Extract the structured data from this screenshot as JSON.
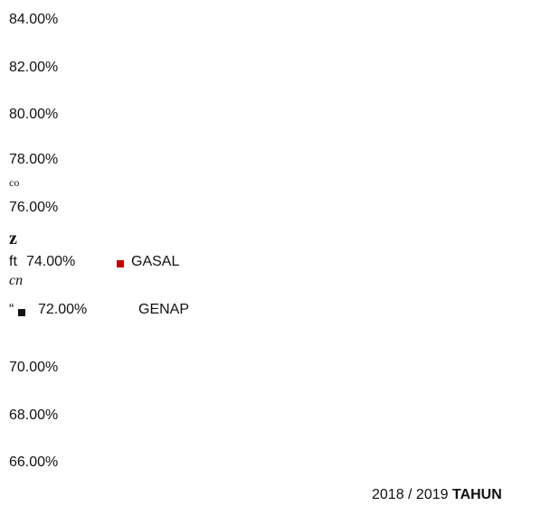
{
  "axis_labels": [
    "84.00%",
    "82.00%",
    "80.00%",
    "78.00%",
    "76.00%",
    "74.00%",
    "72.00%",
    "70.00%",
    "68.00%",
    "66.00%"
  ],
  "fragments": [
    "co",
    "z",
    "ft",
    "cn",
    "“"
  ],
  "legend": [
    "GASAL",
    "GENAP"
  ],
  "footer": {
    "years": "2018 / 2019",
    "label": "TAHUN"
  }
}
